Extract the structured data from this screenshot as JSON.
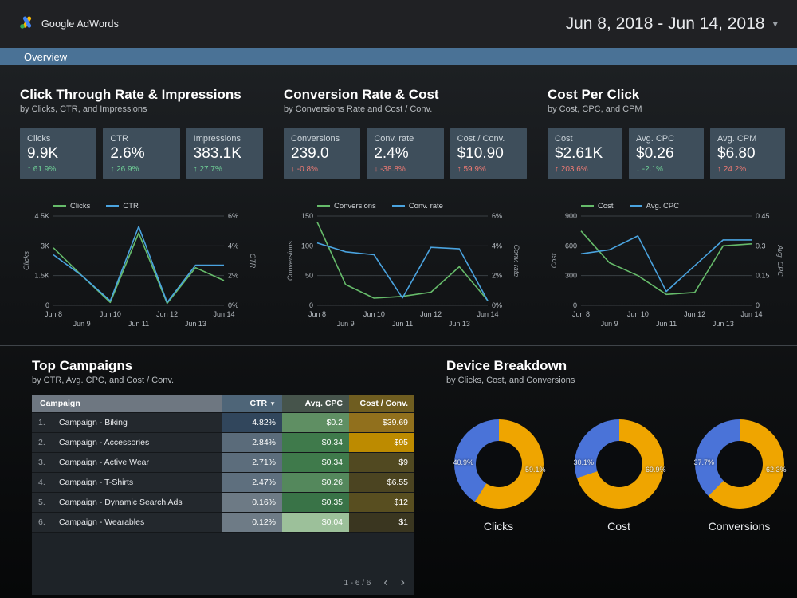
{
  "header": {
    "brand": "Google AdWords",
    "date_range": "Jun 8, 2018 - Jun 14, 2018",
    "caret": "▾"
  },
  "tabbar": {
    "overview": "Overview"
  },
  "panels": [
    {
      "title": "Click Through Rate & Impressions",
      "subtitle": "by Clicks, CTR, and Impressions",
      "cards": [
        {
          "label": "Clicks",
          "value": "9.9K",
          "arrow": "↑",
          "delta": "61.9%",
          "tone": "good"
        },
        {
          "label": "CTR",
          "value": "2.6%",
          "arrow": "↑",
          "delta": "26.9%",
          "tone": "good"
        },
        {
          "label": "Impressions",
          "value": "383.1K",
          "arrow": "↑",
          "delta": "27.7%",
          "tone": "good"
        }
      ]
    },
    {
      "title": "Conversion Rate & Cost",
      "subtitle": "by Conversions Rate and Cost / Conv.",
      "cards": [
        {
          "label": "Conversions",
          "value": "239.0",
          "arrow": "↓",
          "delta": "-0.8%",
          "tone": "bad"
        },
        {
          "label": "Conv. rate",
          "value": "2.4%",
          "arrow": "↓",
          "delta": "-38.8%",
          "tone": "bad"
        },
        {
          "label": "Cost / Conv.",
          "value": "$10.90",
          "arrow": "↑",
          "delta": "59.9%",
          "tone": "bad"
        }
      ]
    },
    {
      "title": "Cost Per Click",
      "subtitle": "by Cost, CPC, and CPM",
      "cards": [
        {
          "label": "Cost",
          "value": "$2.61K",
          "arrow": "↑",
          "delta": "203.6%",
          "tone": "bad"
        },
        {
          "label": "Avg. CPC",
          "value": "$0.26",
          "arrow": "↓",
          "delta": "-2.1%",
          "tone": "good"
        },
        {
          "label": "Avg. CPM",
          "value": "$6.80",
          "arrow": "↑",
          "delta": "24.2%",
          "tone": "bad"
        }
      ]
    }
  ],
  "bottom": {
    "campaigns": {
      "title": "Top Campaigns",
      "subtitle": "by CTR, Avg. CPC, and Cost / Conv.",
      "pagination": "1 - 6 / 6",
      "prev": "‹",
      "next": "›"
    },
    "devices": {
      "title": "Device Breakdown",
      "subtitle": "by Clicks, Cost, and Conversions"
    }
  },
  "table": {
    "columns": [
      "Campaign",
      "CTR",
      "Avg. CPC",
      "Cost / Conv."
    ],
    "sort_column": "CTR",
    "sort_caret": "▼",
    "rows": [
      {
        "num": "1.",
        "name": "Campaign - Biking",
        "ctr": "4.82%",
        "ctr_bg": "#31465c",
        "cpc": "$0.2",
        "cpc_bg": "#5f8f63",
        "cost": "$39.69",
        "cost_bg": "#91701d"
      },
      {
        "num": "2.",
        "name": "Campaign - Accessories",
        "ctr": "2.84%",
        "ctr_bg": "#5a6b7a",
        "cpc": "$0.34",
        "cpc_bg": "#3f7a4b",
        "cost": "$95",
        "cost_bg": "#bd8b00"
      },
      {
        "num": "3.",
        "name": "Campaign - Active Wear",
        "ctr": "2.71%",
        "ctr_bg": "#5c6d7c",
        "cpc": "$0.34",
        "cpc_bg": "#3f7a4b",
        "cost": "$9",
        "cost_bg": "#514921"
      },
      {
        "num": "4.",
        "name": "Campaign - T-Shirts",
        "ctr": "2.47%",
        "ctr_bg": "#5e6f7e",
        "cpc": "$0.26",
        "cpc_bg": "#54885c",
        "cost": "$6.55",
        "cost_bg": "#4b4421"
      },
      {
        "num": "5.",
        "name": "Campaign - Dynamic Search Ads",
        "ctr": "0.16%",
        "ctr_bg": "#6d7a85",
        "cpc": "$0.35",
        "cpc_bg": "#397347",
        "cost": "$12",
        "cost_bg": "#584e20"
      },
      {
        "num": "6.",
        "name": "Campaign - Wearables",
        "ctr": "0.12%",
        "ctr_bg": "#6e7b86",
        "cpc": "$0.04",
        "cpc_bg": "#9cc09a",
        "cost": "$1",
        "cost_bg": "#3a3620"
      }
    ]
  },
  "chart_data": [
    {
      "type": "line",
      "title": "Click Through Rate & Impressions",
      "x": [
        "Jun 8",
        "Jun 9",
        "Jun 10",
        "Jun 11",
        "Jun 12",
        "Jun 13",
        "Jun 14"
      ],
      "series": [
        {
          "name": "Clicks",
          "axis": "left",
          "color": "#66bb6a",
          "values": [
            2900,
            1500,
            150,
            3650,
            100,
            1900,
            1250
          ]
        },
        {
          "name": "CTR",
          "axis": "right",
          "color": "#4aa3df",
          "values": [
            3.4,
            2.0,
            0.3,
            5.3,
            0.2,
            2.7,
            2.7
          ]
        }
      ],
      "left_axis": {
        "title": "Clicks",
        "min": 0,
        "max": 4500,
        "ticks": [
          "0",
          "1.5K",
          "3K",
          "4.5K"
        ]
      },
      "right_axis": {
        "title": "CTR",
        "min": 0,
        "max": 6,
        "ticks": [
          "0%",
          "2%",
          "4%",
          "6%"
        ]
      },
      "grid": true,
      "legend_position": "top"
    },
    {
      "type": "line",
      "title": "Conversion Rate & Cost",
      "x": [
        "Jun 8",
        "Jun 9",
        "Jun 10",
        "Jun 11",
        "Jun 12",
        "Jun 13",
        "Jun 14"
      ],
      "series": [
        {
          "name": "Conversions",
          "axis": "left",
          "color": "#66bb6a",
          "values": [
            140,
            35,
            12,
            15,
            22,
            65,
            8
          ]
        },
        {
          "name": "Conv. rate",
          "axis": "right",
          "color": "#4aa3df",
          "values": [
            4.2,
            3.6,
            3.4,
            0.5,
            3.9,
            3.8,
            0.3
          ]
        }
      ],
      "left_axis": {
        "title": "Conversions",
        "min": 0,
        "max": 150,
        "ticks": [
          "0",
          "50",
          "100",
          "150"
        ]
      },
      "right_axis": {
        "title": "Conv. rate",
        "min": 0,
        "max": 6,
        "ticks": [
          "0%",
          "2%",
          "4%",
          "6%"
        ]
      },
      "grid": true,
      "legend_position": "top"
    },
    {
      "type": "line",
      "title": "Cost Per Click",
      "x": [
        "Jun 8",
        "Jun 9",
        "Jun 10",
        "Jun 11",
        "Jun 12",
        "Jun 13",
        "Jun 14"
      ],
      "series": [
        {
          "name": "Cost",
          "axis": "left",
          "color": "#66bb6a",
          "values": [
            750,
            430,
            300,
            110,
            130,
            600,
            620
          ]
        },
        {
          "name": "Avg. CPC",
          "axis": "right",
          "color": "#4aa3df",
          "values": [
            0.26,
            0.28,
            0.35,
            0.07,
            0.2,
            0.33,
            0.33
          ]
        }
      ],
      "left_axis": {
        "title": "Cost",
        "min": 0,
        "max": 900,
        "ticks": [
          "0",
          "300",
          "600",
          "900"
        ]
      },
      "right_axis": {
        "title": "Avg. CPC",
        "min": 0,
        "max": 0.45,
        "ticks": [
          "0",
          "0.15",
          "0.3",
          "0.45"
        ]
      },
      "grid": true,
      "legend_position": "top"
    },
    {
      "type": "pie",
      "title": "Clicks",
      "slices": [
        {
          "label": "59.1%",
          "value": 59.1,
          "color": "#efa500"
        },
        {
          "label": "40.9%",
          "value": 40.9,
          "color": "#4a73d8"
        }
      ]
    },
    {
      "type": "pie",
      "title": "Cost",
      "slices": [
        {
          "label": "69.9%",
          "value": 69.9,
          "color": "#efa500"
        },
        {
          "label": "30.1%",
          "value": 30.1,
          "color": "#4a73d8"
        }
      ]
    },
    {
      "type": "pie",
      "title": "Conversions",
      "slices": [
        {
          "label": "62.3%",
          "value": 62.3,
          "color": "#efa500"
        },
        {
          "label": "37.7%",
          "value": 37.7,
          "color": "#4a73d8"
        }
      ]
    }
  ]
}
